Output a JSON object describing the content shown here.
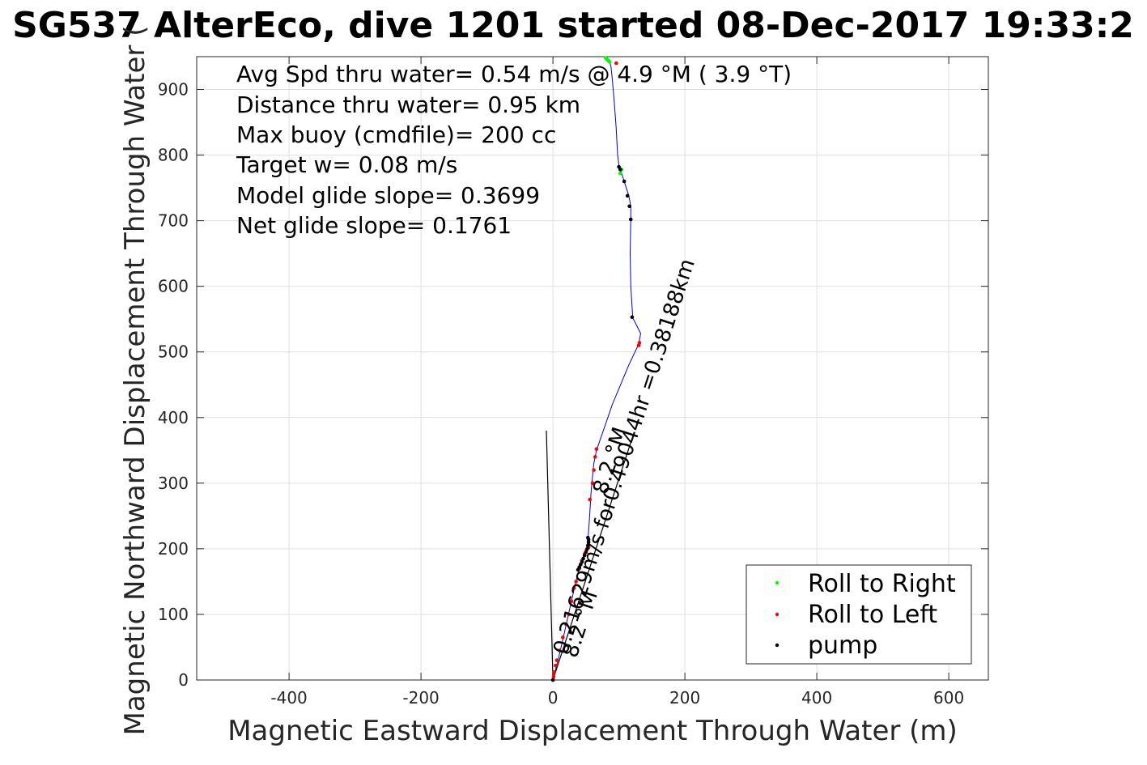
{
  "chart_data": {
    "type": "scatter",
    "title": "SG537 AlterEco, dive 1201 started 08-Dec-2017 19:33:2",
    "xlabel": "Magnetic Eastward Displacement Through Water (m)",
    "ylabel": "Magnetic Northward Displacement Through Water (",
    "xlim": [
      -540,
      660
    ],
    "ylim": [
      0,
      950
    ],
    "xticks": [
      -400,
      -200,
      0,
      200,
      400,
      600
    ],
    "yticks": [
      0,
      100,
      200,
      300,
      400,
      500,
      600,
      700,
      800,
      900
    ],
    "grid": true,
    "legend_position": "bottom-right",
    "legend": [
      {
        "label": "Roll to Right",
        "color": "#00ff00"
      },
      {
        "label": "Roll to Left",
        "color": "#ff0000"
      },
      {
        "label": "pump",
        "color": "#000000"
      }
    ],
    "info_lines": [
      "Avg Spd thru water=  0.54 m/s @   4.9 °M (  3.9 °T)",
      "Distance thru water=  0.95 km",
      "Max buoy (cmdfile)= 200 cc",
      "Target w= 0.08 m/s",
      "Model glide slope= 0.3699",
      "Net glide slope= 0.1761"
    ],
    "annotations": [
      {
        "text": "0.21629m/s for0.49044hr =0.38188km"
      },
      {
        "text": "8.2 °M"
      },
      {
        "text": "8.2 °M"
      }
    ],
    "series": [
      {
        "kind": "track",
        "color": "#0000cc",
        "points": [
          [
            0,
            0
          ],
          [
            2,
            8
          ],
          [
            5,
            20
          ],
          [
            10,
            40
          ],
          [
            18,
            75
          ],
          [
            28,
            120
          ],
          [
            36,
            155
          ],
          [
            42,
            178
          ],
          [
            46,
            188
          ],
          [
            50,
            198
          ],
          [
            52,
            205
          ],
          [
            53,
            212
          ],
          [
            55,
            240
          ],
          [
            58,
            290
          ],
          [
            62,
            330
          ],
          [
            66,
            350
          ],
          [
            90,
            420
          ],
          [
            115,
            480
          ],
          [
            130,
            512
          ],
          [
            133,
            528
          ],
          [
            128,
            538
          ],
          [
            121,
            552
          ],
          [
            118,
            600
          ],
          [
            117,
            650
          ],
          [
            118,
            705
          ],
          [
            118,
            722
          ],
          [
            115,
            738
          ],
          [
            108,
            760
          ],
          [
            100,
            785
          ],
          [
            98,
            800
          ],
          [
            96,
            840
          ],
          [
            93,
            880
          ],
          [
            90,
            915
          ],
          [
            88,
            935
          ],
          [
            85,
            945
          ]
        ]
      },
      {
        "name": "Roll to Right",
        "kind": "points",
        "color": "#00ff00",
        "points": [
          [
            80,
            948
          ],
          [
            82,
            946
          ],
          [
            84,
            944
          ],
          [
            86,
            942
          ],
          [
            104,
            778
          ],
          [
            102,
            772
          ]
        ]
      },
      {
        "name": "Roll to Left",
        "kind": "points",
        "color": "#ff0000",
        "points": [
          [
            0,
            0
          ],
          [
            1,
            5
          ],
          [
            2,
            12
          ],
          [
            4,
            22
          ],
          [
            6,
            30
          ],
          [
            10,
            45
          ],
          [
            15,
            65
          ],
          [
            20,
            85
          ],
          [
            24,
            100
          ],
          [
            28,
            120
          ],
          [
            32,
            140
          ],
          [
            35,
            150
          ],
          [
            40,
            170
          ],
          [
            44,
            182
          ],
          [
            48,
            192
          ],
          [
            51,
            198
          ],
          [
            54,
            202
          ],
          [
            56,
            275
          ],
          [
            60,
            300
          ],
          [
            62,
            320
          ],
          [
            64,
            340
          ],
          [
            66,
            352
          ],
          [
            130,
            510
          ],
          [
            131,
            514
          ],
          [
            96,
            940
          ]
        ]
      },
      {
        "name": "pump",
        "kind": "points",
        "color": "#000000",
        "points": [
          [
            0,
            0
          ],
          [
            38,
            168
          ],
          [
            40,
            172
          ],
          [
            42,
            176
          ],
          [
            44,
            180
          ],
          [
            46,
            185
          ],
          [
            48,
            190
          ],
          [
            50,
            195
          ],
          [
            52,
            200
          ],
          [
            53,
            205
          ],
          [
            54,
            210
          ],
          [
            54,
            214
          ],
          [
            53,
            217
          ],
          [
            120,
            553
          ],
          [
            118,
            702
          ],
          [
            116,
            722
          ],
          [
            113,
            738
          ],
          [
            108,
            760
          ],
          [
            102,
            778
          ],
          [
            100,
            782
          ]
        ]
      },
      {
        "kind": "reference-line",
        "color": "#000000",
        "points": [
          [
            0,
            0
          ],
          [
            -10,
            380
          ]
        ]
      },
      {
        "kind": "reference-line",
        "color": "#000000",
        "points": [
          [
            0,
            0
          ],
          [
            118,
            362
          ]
        ]
      }
    ]
  }
}
